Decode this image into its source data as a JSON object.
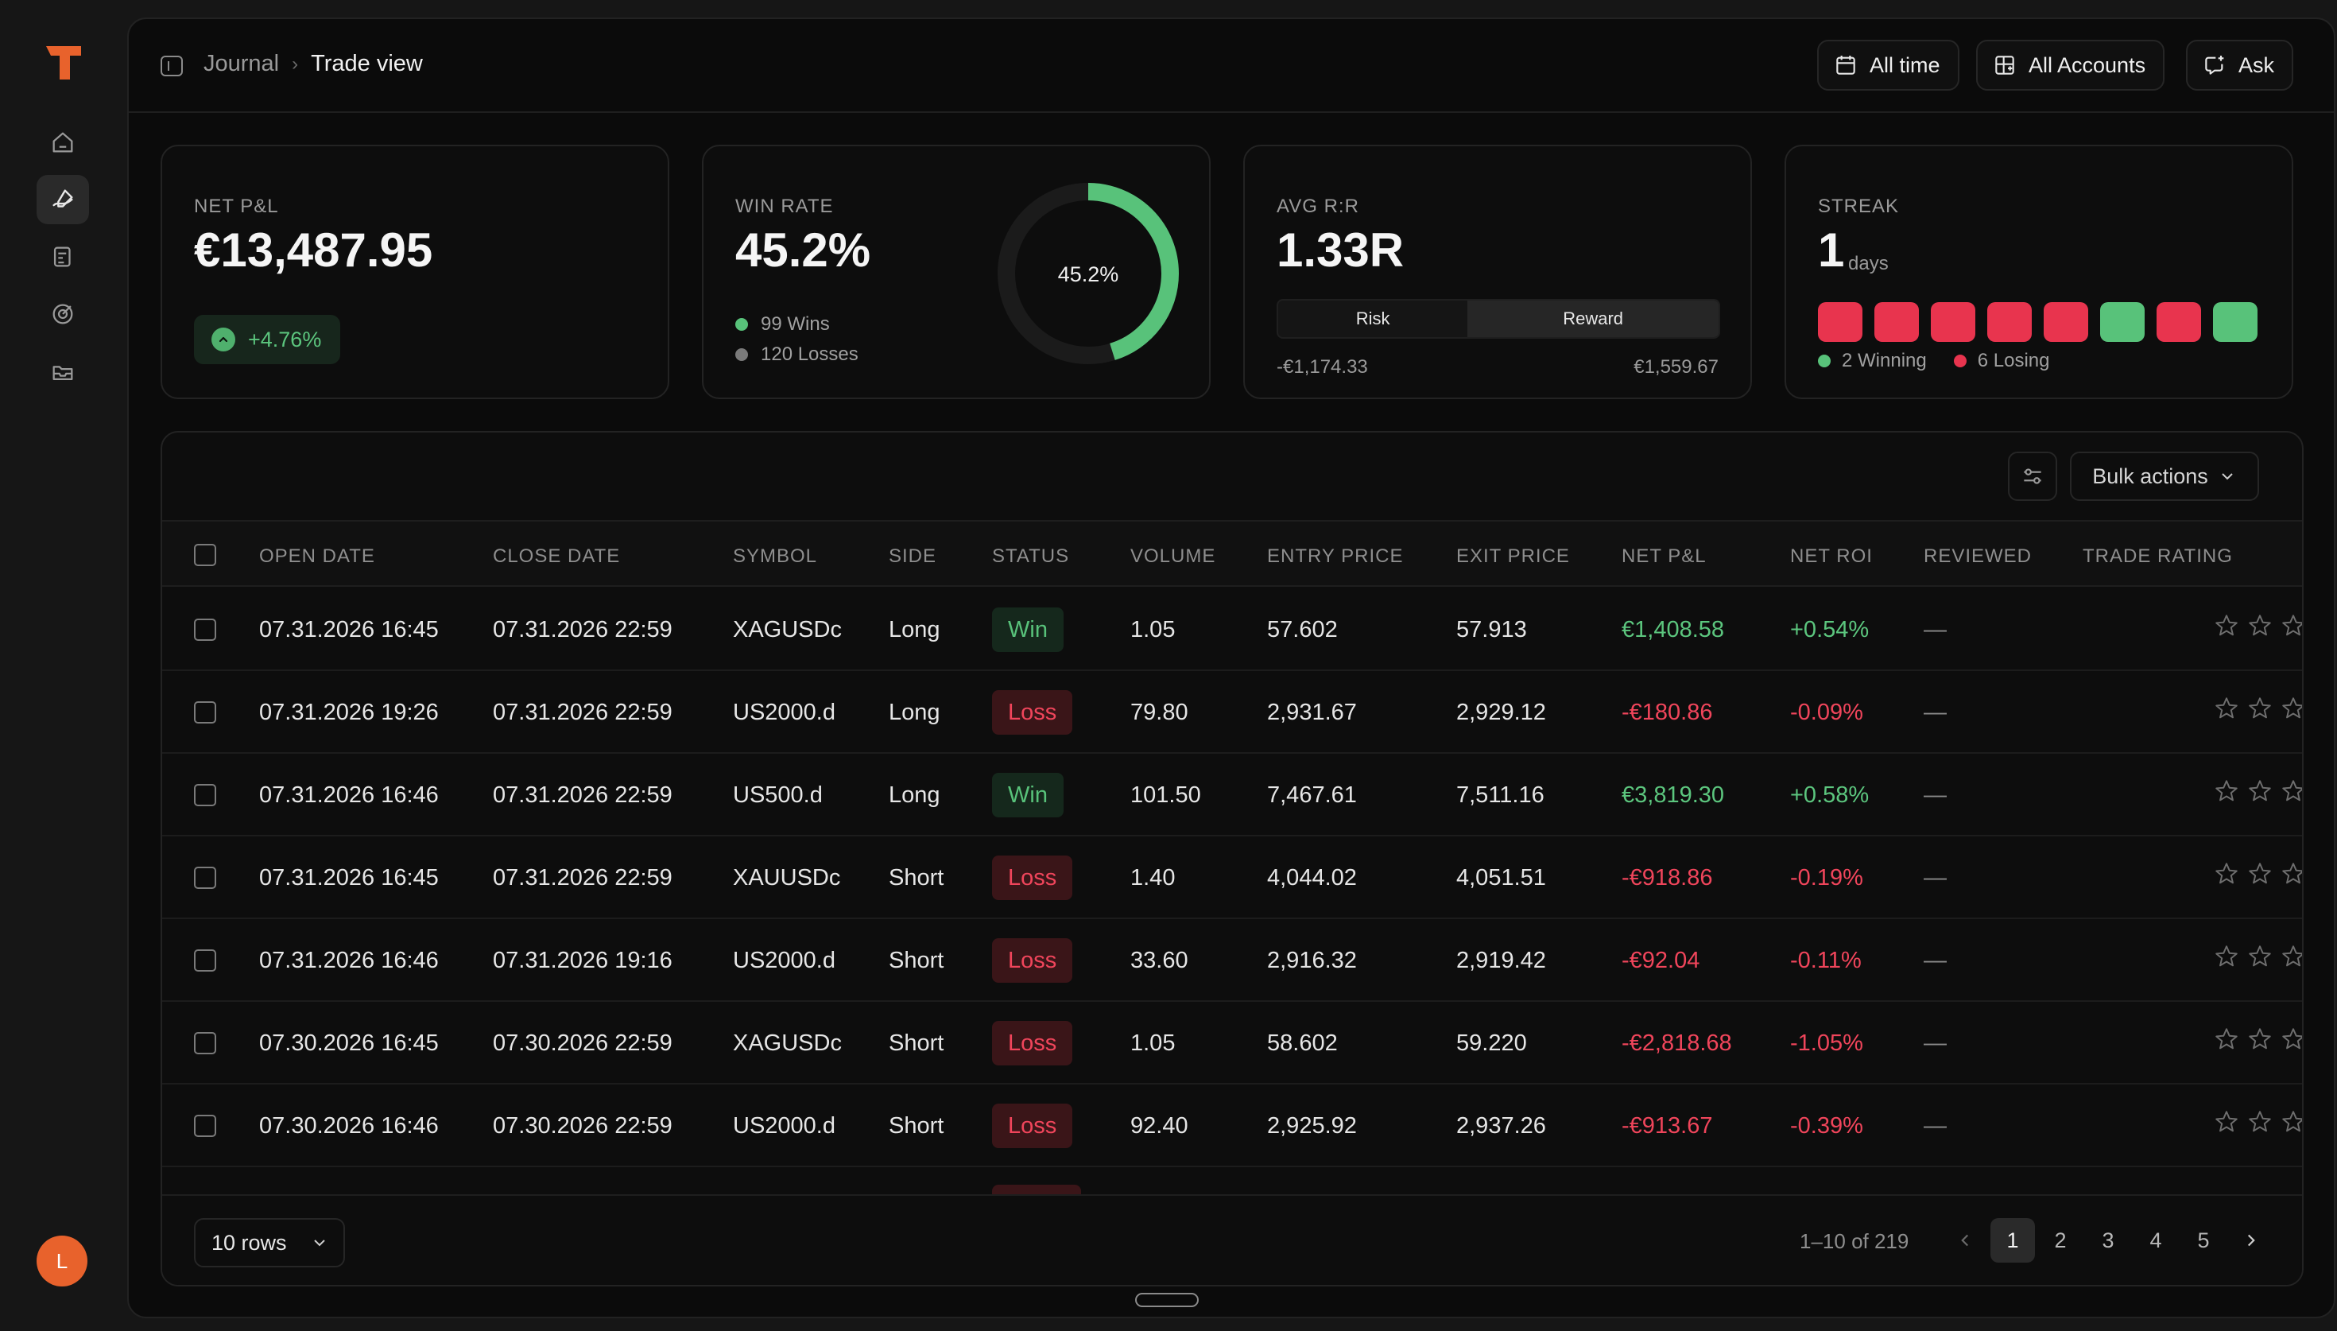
{
  "app": {
    "logo": "brand-logo",
    "avatar_initial": "L",
    "accent": "#e8622c"
  },
  "nav": {
    "items": [
      {
        "name": "home-icon"
      },
      {
        "name": "trade-view-icon",
        "active": true
      },
      {
        "name": "notes-icon"
      },
      {
        "name": "goals-icon"
      },
      {
        "name": "inbox-icon"
      }
    ]
  },
  "breadcrumb": {
    "root": "Journal",
    "separator": "›",
    "current": "Trade view"
  },
  "toolbar": {
    "time_filter": "All time",
    "accounts_filter": "All Accounts",
    "ask_label": "Ask"
  },
  "stats": {
    "net_pnl": {
      "label": "NET P&L",
      "value": "€13,487.95",
      "change": "+4.76%"
    },
    "win_rate": {
      "label": "WIN RATE",
      "value": "45.2%",
      "wins": "99 Wins",
      "losses": "120 Losses",
      "donut_label": "45.2%",
      "fraction": 0.452
    },
    "avg_rr": {
      "label": "AVG R:R",
      "value": "1.33R",
      "risk_label": "Risk",
      "reward_label": "Reward",
      "risk_amount": "-€1,174.33",
      "reward_amount": "€1,559.67",
      "risk_share": 0.43
    },
    "streak": {
      "label": "STREAK",
      "value": "1",
      "unit": "days",
      "days": [
        "loss",
        "loss",
        "loss",
        "loss",
        "loss",
        "win",
        "loss",
        "win"
      ],
      "winning": "2 Winning",
      "losing": "6 Losing"
    }
  },
  "colors": {
    "win": "#58c27a",
    "loss": "#e8344e"
  },
  "table": {
    "bulk_actions_label": "Bulk actions",
    "columns": [
      "OPEN DATE",
      "CLOSE DATE",
      "SYMBOL",
      "SIDE",
      "STATUS",
      "VOLUME",
      "ENTRY PRICE",
      "EXIT PRICE",
      "NET P&L",
      "NET ROI",
      "REVIEWED",
      "TRADE RATING"
    ],
    "rows": [
      {
        "open": "07.31.2026 16:45",
        "close": "07.31.2026 22:59",
        "symbol": "XAGUSDc",
        "side": "Long",
        "status": "Win",
        "volume": "1.05",
        "entry": "57.602",
        "exit": "57.913",
        "pnl": "€1,408.58",
        "roi": "+0.54%",
        "reviewed": "—",
        "positive": true
      },
      {
        "open": "07.31.2026 19:26",
        "close": "07.31.2026 22:59",
        "symbol": "US2000.d",
        "side": "Long",
        "status": "Loss",
        "volume": "79.80",
        "entry": "2,931.67",
        "exit": "2,929.12",
        "pnl": "-€180.86",
        "roi": "-0.09%",
        "reviewed": "—",
        "positive": false
      },
      {
        "open": "07.31.2026 16:46",
        "close": "07.31.2026 22:59",
        "symbol": "US500.d",
        "side": "Long",
        "status": "Win",
        "volume": "101.50",
        "entry": "7,467.61",
        "exit": "7,511.16",
        "pnl": "€3,819.30",
        "roi": "+0.58%",
        "reviewed": "—",
        "positive": true
      },
      {
        "open": "07.31.2026 16:45",
        "close": "07.31.2026 22:59",
        "symbol": "XAUUSDc",
        "side": "Short",
        "status": "Loss",
        "volume": "1.40",
        "entry": "4,044.02",
        "exit": "4,051.51",
        "pnl": "-€918.86",
        "roi": "-0.19%",
        "reviewed": "—",
        "positive": false
      },
      {
        "open": "07.31.2026 16:46",
        "close": "07.31.2026 19:16",
        "symbol": "US2000.d",
        "side": "Short",
        "status": "Loss",
        "volume": "33.60",
        "entry": "2,916.32",
        "exit": "2,919.42",
        "pnl": "-€92.04",
        "roi": "-0.11%",
        "reviewed": "—",
        "positive": false
      },
      {
        "open": "07.30.2026 16:45",
        "close": "07.30.2026 22:59",
        "symbol": "XAGUSDc",
        "side": "Short",
        "status": "Loss",
        "volume": "1.05",
        "entry": "58.602",
        "exit": "59.220",
        "pnl": "-€2,818.68",
        "roi": "-1.05%",
        "reviewed": "—",
        "positive": false
      },
      {
        "open": "07.30.2026 16:46",
        "close": "07.30.2026 22:59",
        "symbol": "US2000.d",
        "side": "Short",
        "status": "Loss",
        "volume": "92.40",
        "entry": "2,925.92",
        "exit": "2,937.26",
        "pnl": "-€913.67",
        "roi": "-0.39%",
        "reviewed": "—",
        "positive": false
      }
    ]
  },
  "pagination": {
    "rows_per_page": "10 rows",
    "range": "1–10 of 219",
    "pages": [
      "1",
      "2",
      "3",
      "4",
      "5"
    ],
    "current": "1"
  }
}
